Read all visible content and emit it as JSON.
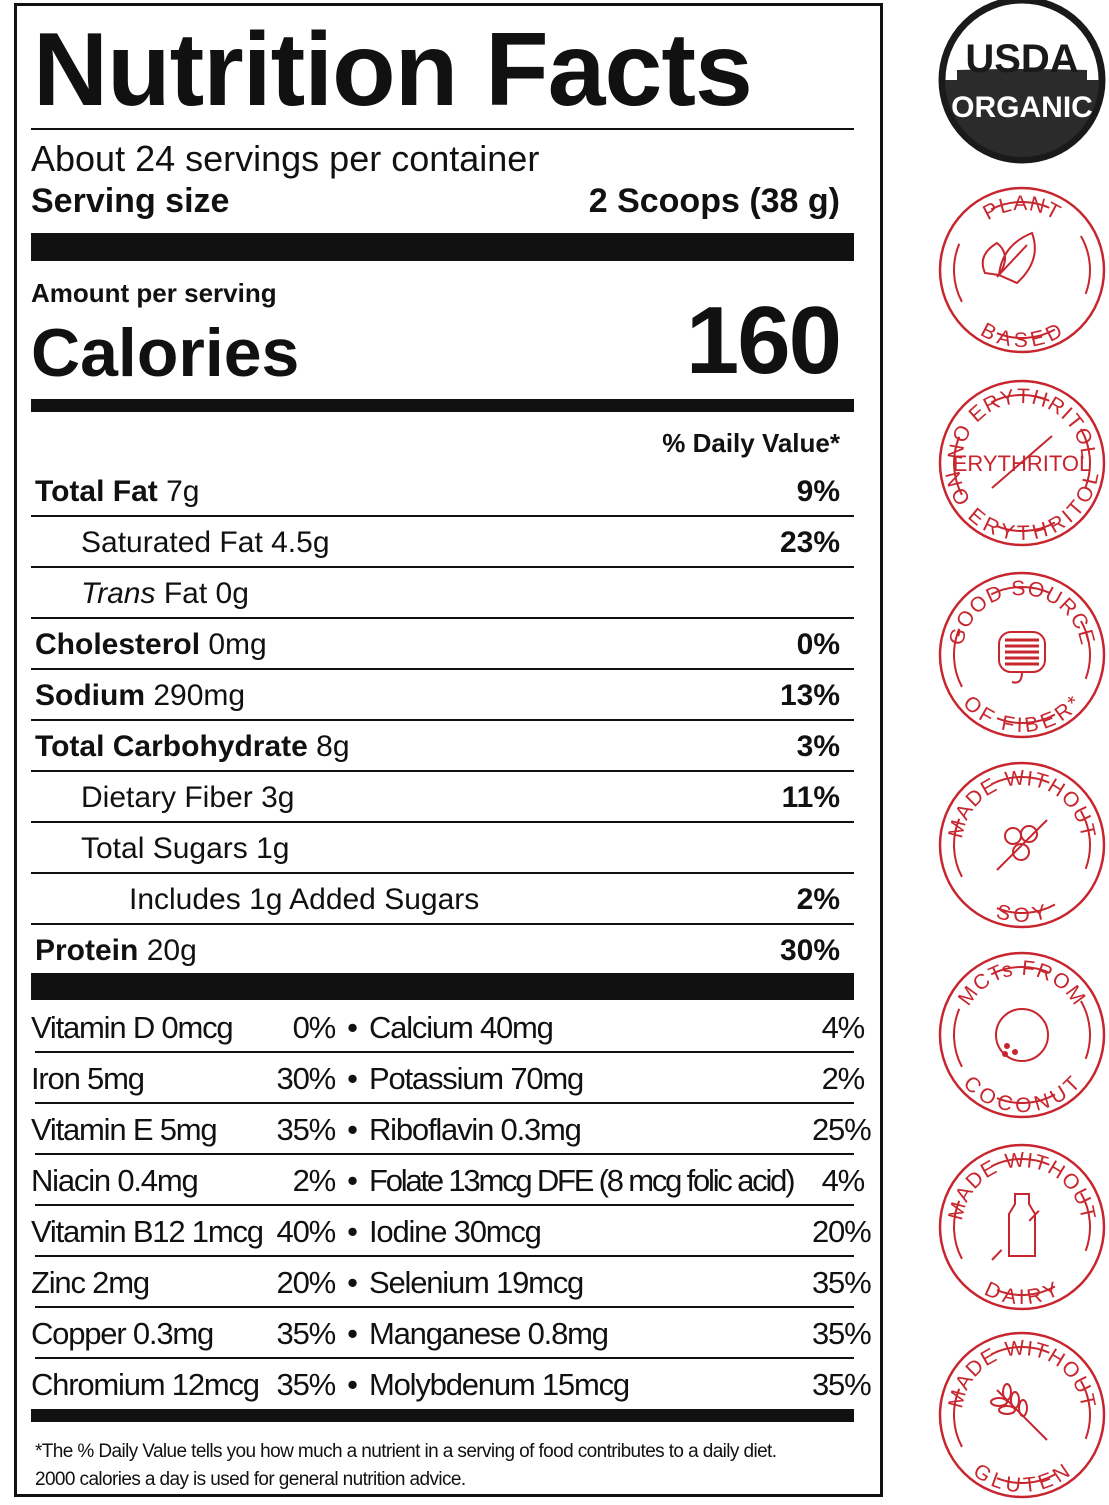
{
  "title": "Nutrition Facts",
  "servings": "About 24 servings per container",
  "serving_size": {
    "label": "Serving size",
    "value": "2 Scoops (38 g)"
  },
  "amount_per_serving": "Amount per serving",
  "calories": {
    "label": "Calories",
    "value": "160"
  },
  "daily_value_header": "% Daily Value*",
  "nutrients": [
    {
      "name": "Total Fat",
      "amount": "7g",
      "dv": "9%"
    },
    {
      "name": "Saturated Fat",
      "amount": "4.5g",
      "dv": "23%"
    },
    {
      "name": "Trans",
      "name2": "Fat",
      "amount": "0g",
      "dv": ""
    },
    {
      "name": "Cholesterol",
      "amount": "0mg",
      "dv": "0%"
    },
    {
      "name": "Sodium",
      "amount": "290mg",
      "dv": "13%"
    },
    {
      "name": "Total Carbohydrate",
      "amount": "8g",
      "dv": "3%"
    },
    {
      "name": "Dietary Fiber",
      "amount": "3g",
      "dv": "11%"
    },
    {
      "name": "Total Sugars",
      "amount": "1g",
      "dv": ""
    },
    {
      "name": "Includes 1g Added Sugars",
      "amount": "",
      "dv": "2%"
    },
    {
      "name": "Protein",
      "amount": "20g",
      "dv": "30%"
    }
  ],
  "vitamins": [
    {
      "a": "Vitamin D 0mcg",
      "ap": "0%",
      "b": "Calcium 40mg",
      "bp": "4%"
    },
    {
      "a": "Iron 5mg",
      "ap": "30%",
      "b": "Potassium 70mg",
      "bp": "2%"
    },
    {
      "a": "Vitamin E 5mg",
      "ap": "35%",
      "b": "Riboflavin 0.3mg",
      "bp": "25%"
    },
    {
      "a": "Niacin 0.4mg",
      "ap": "2%",
      "b": "Folate 13mcg DFE (8 mcg folic acid)",
      "bp": "4%"
    },
    {
      "a": "Vitamin B12 1mcg",
      "ap": "40%",
      "b": "Iodine 30mcg",
      "bp": "20%"
    },
    {
      "a": "Zinc 2mg",
      "ap": "20%",
      "b": "Selenium 19mcg",
      "bp": "35%"
    },
    {
      "a": "Copper 0.3mg",
      "ap": "35%",
      "b": "Manganese 0.8mg",
      "bp": "35%"
    },
    {
      "a": "Chromium 12mcg",
      "ap": "35%",
      "b": "Molybdenum 15mcg",
      "bp": "35%"
    }
  ],
  "bullet": "•",
  "footnote": [
    "*The % Daily Value tells you how much a nutrient in a serving of food contributes to a daily diet.",
    "2000 calories a day is used for general nutrition advice."
  ],
  "badge_color": "#c8262e",
  "usda": {
    "top": "USDA",
    "bottom": "ORGANIC"
  },
  "badges": [
    {
      "top": "PLANT",
      "bottom": "BASED",
      "icon": "leaf-icon"
    },
    {
      "top": "NO ERYTHRITOL",
      "bottom": "NO ERYTHRITOL",
      "center": "ERYTHRITOL",
      "icon": "crossed-out-icon"
    },
    {
      "top": "GOOD SOURCE",
      "bottom": "OF FIBER*",
      "icon": "intestine-icon"
    },
    {
      "top": "MADE WITHOUT",
      "bottom": "SOY",
      "icon": "soybean-icon"
    },
    {
      "top": "MCTs FROM",
      "bottom": "COCONUT",
      "icon": "coconut-icon"
    },
    {
      "top": "MADE WITHOUT",
      "bottom": "DAIRY",
      "icon": "milk-bottle-icon"
    },
    {
      "top": "MADE WITHOUT",
      "bottom": "GLUTEN",
      "icon": "wheat-icon"
    }
  ]
}
